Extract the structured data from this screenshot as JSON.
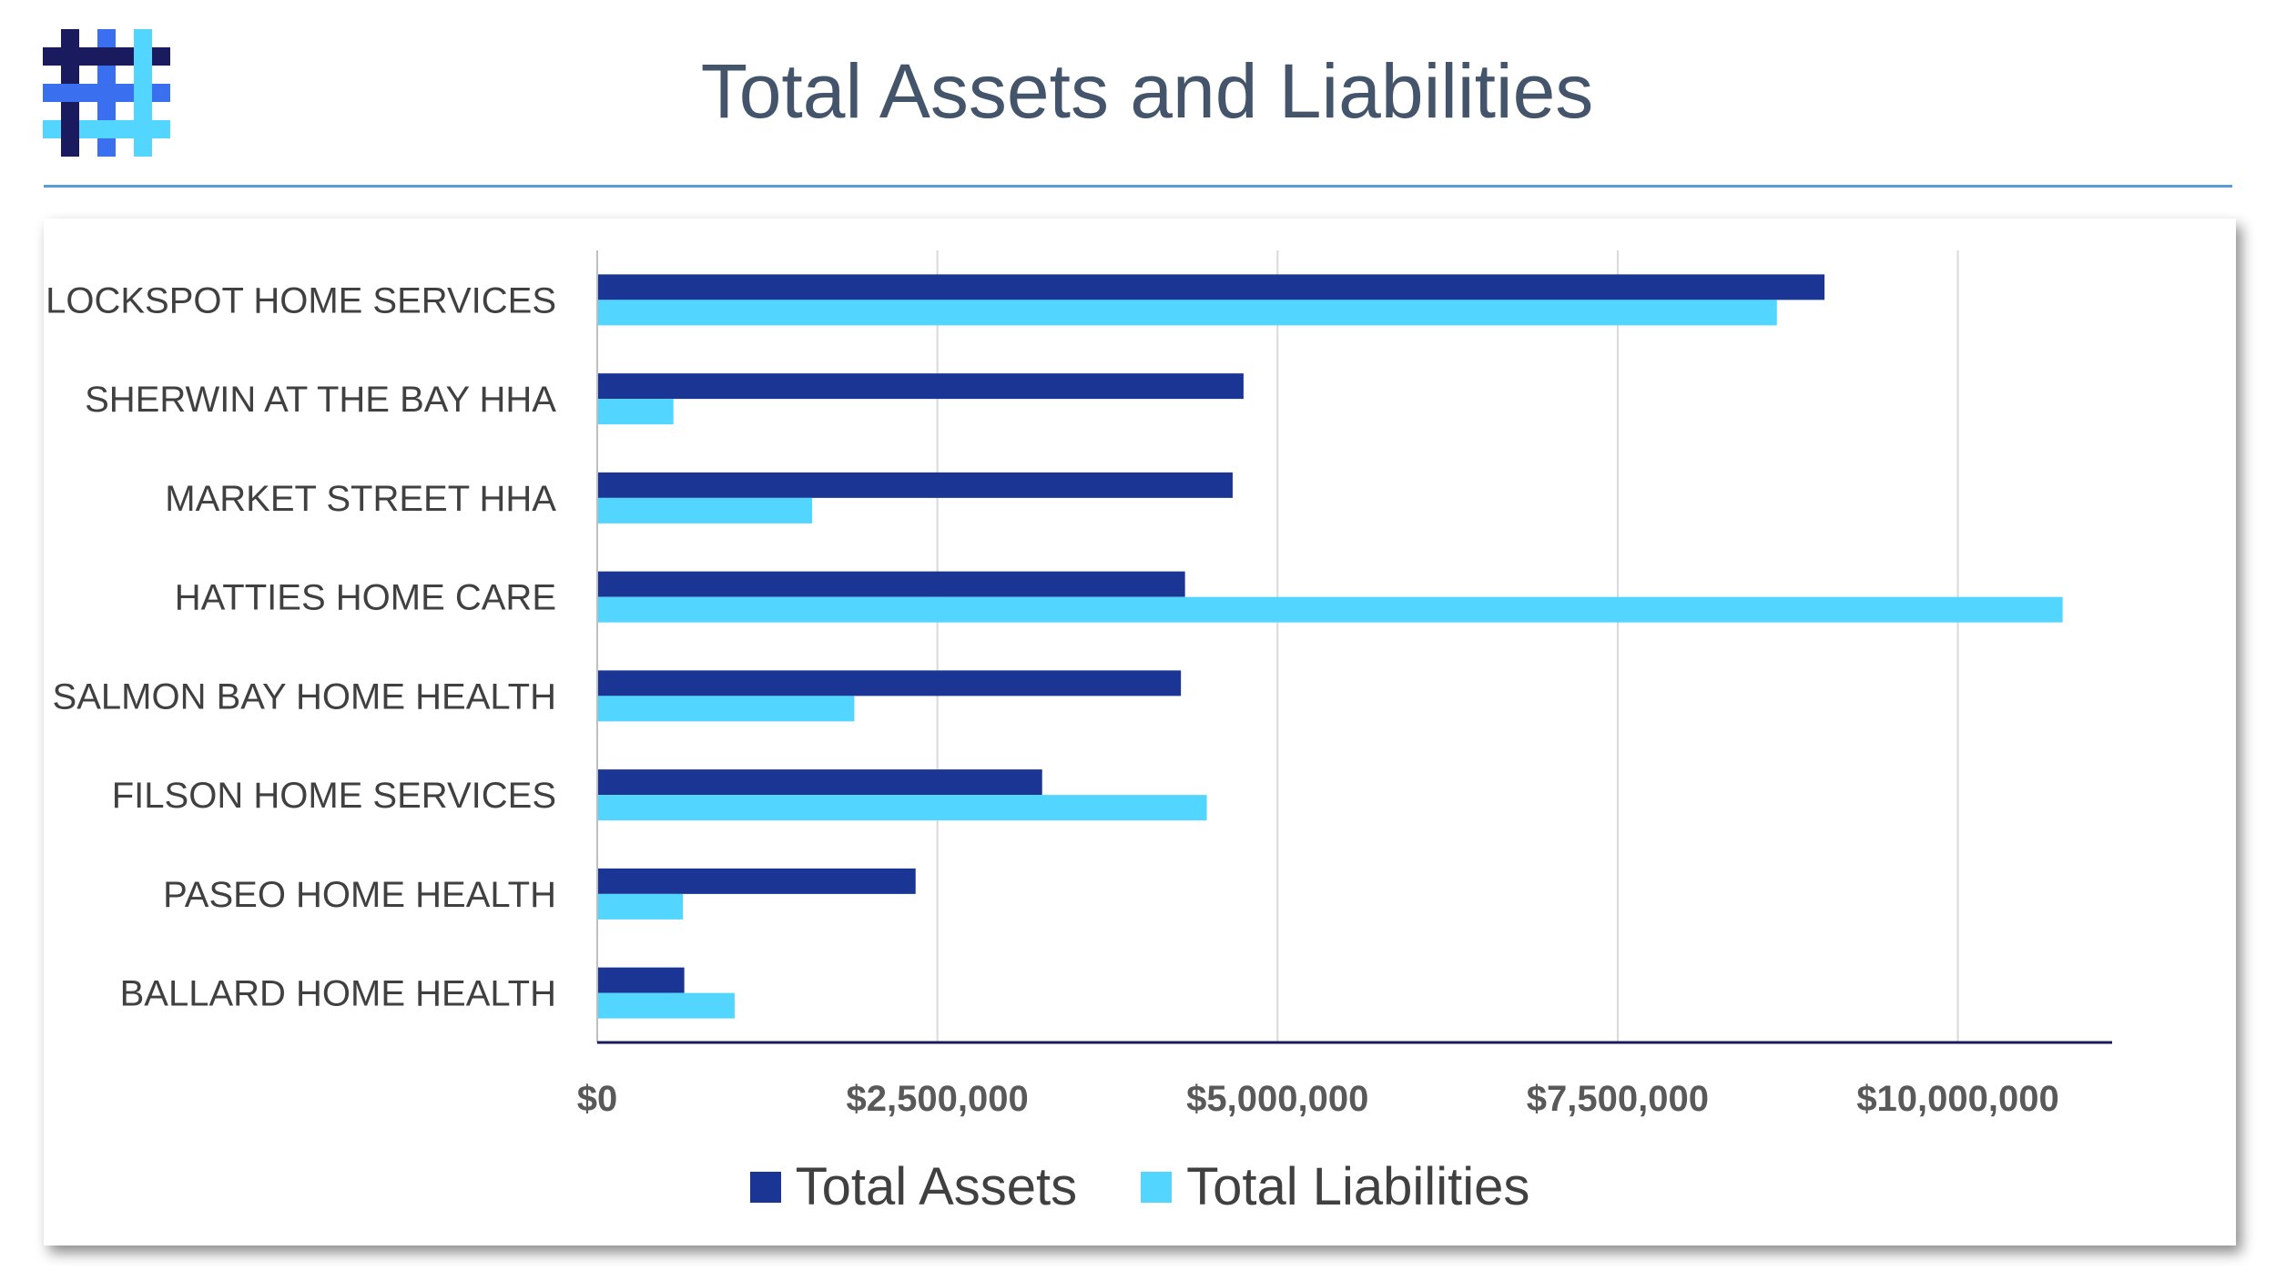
{
  "header": {
    "title": "Total Assets and Liabilities"
  },
  "logo": {
    "icon": "hashtag-lattice-logo",
    "colors": [
      "#1A1A5E",
      "#3A6FF0",
      "#52D6FF"
    ]
  },
  "chart_data": {
    "type": "bar",
    "orientation": "horizontal",
    "title": "",
    "categories": [
      "LOCKSPOT HOME SERVICES",
      "SHERWIN AT THE BAY HHA",
      "MARKET STREET HHA",
      "HATTIES HOME CARE",
      "SALMON BAY HOME HEALTH",
      "FILSON HOME SERVICES",
      "PASEO HOME HEALTH",
      "BALLARD HOME HEALTH"
    ],
    "series": [
      {
        "name": "Total Assets",
        "color": "#1B3594",
        "values": [
          9020000,
          4750000,
          4670000,
          4320000,
          4290000,
          3270000,
          2340000,
          640000
        ]
      },
      {
        "name": "Total Liabilities",
        "color": "#52D6FF",
        "values": [
          8670000,
          560000,
          1580000,
          10770000,
          1890000,
          4480000,
          630000,
          1010000
        ]
      }
    ],
    "x_ticks": [
      0,
      2500000,
      5000000,
      7500000,
      10000000
    ],
    "x_tick_labels": [
      "$0",
      "$2,500,000",
      "$5,000,000",
      "$7,500,000",
      "$10,000,000"
    ],
    "xlim": [
      0,
      11000000
    ],
    "xlabel": "",
    "ylabel": "",
    "grid": "vertical",
    "legend": "bottom"
  }
}
